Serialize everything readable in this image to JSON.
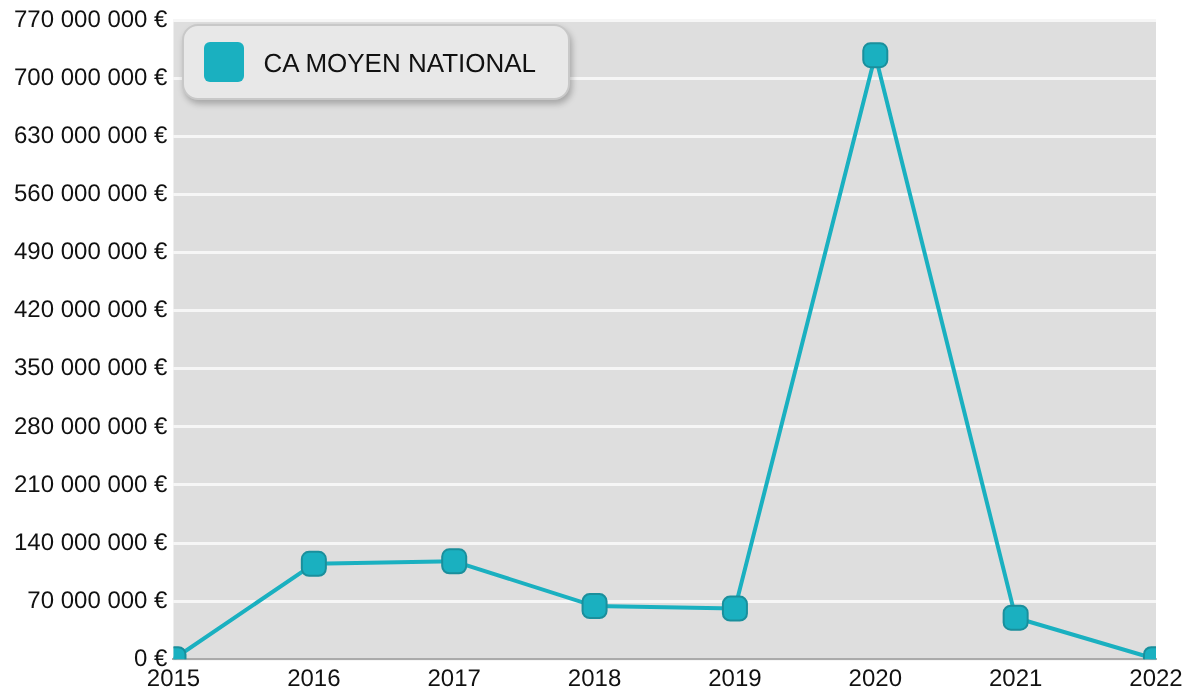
{
  "chart_data": {
    "type": "line",
    "x": [
      2015,
      2016,
      2017,
      2018,
      2019,
      2020,
      2021,
      2022
    ],
    "series": [
      {
        "name": "CA MOYEN NATIONAL",
        "color": "#1ab0c0",
        "values": [
          0,
          115000000,
          118000000,
          64000000,
          61000000,
          728000000,
          50000000,
          0
        ]
      }
    ],
    "xlim": [
      2015,
      2022
    ],
    "xticks": [
      2015,
      2016,
      2017,
      2018,
      2019,
      2020,
      2021,
      2022
    ],
    "ylim": [
      0,
      770000000
    ],
    "yticks": [
      {
        "value": 0,
        "label": "0 €"
      },
      {
        "value": 70000000,
        "label": "70 000 000 €"
      },
      {
        "value": 140000000,
        "label": "140 000 000 €"
      },
      {
        "value": 210000000,
        "label": "210 000 000 €"
      },
      {
        "value": 280000000,
        "label": "280 000 000 €"
      },
      {
        "value": 350000000,
        "label": "350 000 000 €"
      },
      {
        "value": 420000000,
        "label": "420 000 000 €"
      },
      {
        "value": 490000000,
        "label": "490 000 000 €"
      },
      {
        "value": 560000000,
        "label": "560 000 000 €"
      },
      {
        "value": 630000000,
        "label": "630 000 000 €"
      },
      {
        "value": 700000000,
        "label": "700 000 000 €"
      },
      {
        "value": 770000000,
        "label": "770 000 000 €"
      }
    ],
    "grid": "y",
    "legend": "top left",
    "marker": "square",
    "line_style": "solid"
  }
}
